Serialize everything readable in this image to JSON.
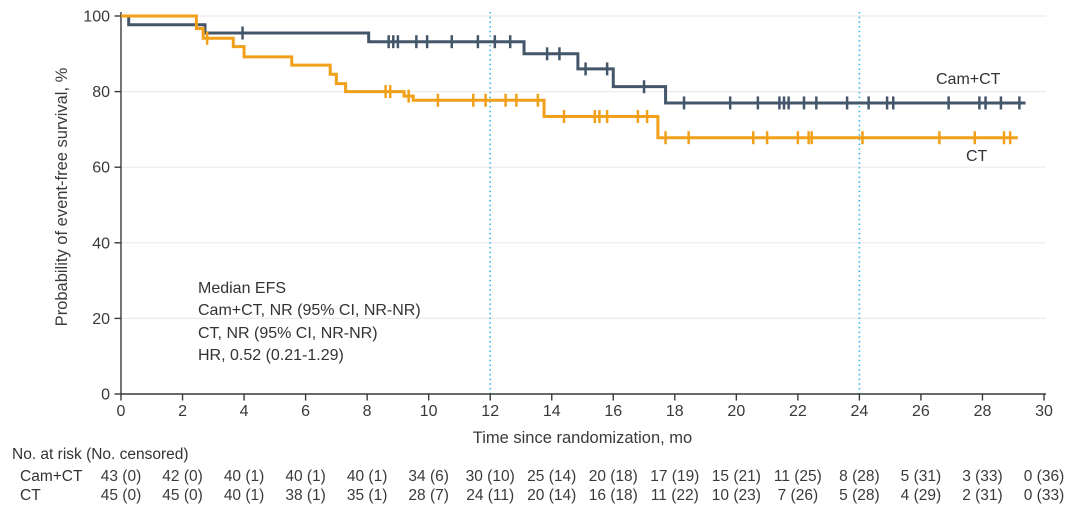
{
  "chart_data": {
    "type": "line",
    "subtype": "kaplan-meier-step",
    "title": "",
    "xlabel": "Time since randomization, mo",
    "ylabel": "Probability of event-free survival, %",
    "xlim": [
      0,
      30
    ],
    "ylim": [
      0,
      100
    ],
    "xticks": [
      0,
      2,
      4,
      6,
      8,
      10,
      12,
      14,
      16,
      18,
      20,
      22,
      24,
      26,
      28,
      30
    ],
    "yticks": [
      0,
      20,
      40,
      60,
      80,
      100
    ],
    "grid": "horizontal",
    "reference_lines_x": [
      12,
      24
    ],
    "legend_position": "curve-end-labels",
    "colors": {
      "camct": "#44576A",
      "ct": "#F0A019",
      "refline": "#35B6E9",
      "grid": "#ECECEC",
      "axis": "#3A3A3A",
      "text": "#333333"
    },
    "annotation": {
      "lines": [
        "Median EFS",
        "Cam+CT, NR (95% CI, NR-NR)",
        "CT, NR (95% CI, NR-NR)",
        "HR, 0.52 (0.21-1.29)"
      ]
    },
    "series": [
      {
        "name": "Cam+CT",
        "color_key": "camct",
        "steps": [
          [
            0,
            100
          ],
          [
            0.25,
            97.7
          ],
          [
            2.73,
            95.5
          ],
          [
            8.05,
            93.2
          ],
          [
            13.1,
            90.0
          ],
          [
            14.85,
            86.0
          ],
          [
            16.0,
            81.3
          ],
          [
            17.7,
            77.0
          ],
          [
            29.4,
            77.0
          ]
        ],
        "censors": [
          [
            3.95,
            95.5
          ],
          [
            8.7,
            93.2
          ],
          [
            8.85,
            93.2
          ],
          [
            9.0,
            93.2
          ],
          [
            9.6,
            93.2
          ],
          [
            9.95,
            93.2
          ],
          [
            10.75,
            93.2
          ],
          [
            11.6,
            93.2
          ],
          [
            12.15,
            93.2
          ],
          [
            12.65,
            93.2
          ],
          [
            13.85,
            90.0
          ],
          [
            14.25,
            90.0
          ],
          [
            15.1,
            86.0
          ],
          [
            15.8,
            86.0
          ],
          [
            17.0,
            81.3
          ],
          [
            18.3,
            77.0
          ],
          [
            19.8,
            77.0
          ],
          [
            20.7,
            77.0
          ],
          [
            21.4,
            77.0
          ],
          [
            21.55,
            77.0
          ],
          [
            21.7,
            77.0
          ],
          [
            22.2,
            77.0
          ],
          [
            22.6,
            77.0
          ],
          [
            23.6,
            77.0
          ],
          [
            24.3,
            77.0
          ],
          [
            24.9,
            77.0
          ],
          [
            25.1,
            77.0
          ],
          [
            26.9,
            77.0
          ],
          [
            27.9,
            77.0
          ],
          [
            28.1,
            77.0
          ],
          [
            28.6,
            77.0
          ],
          [
            29.2,
            77.0
          ]
        ]
      },
      {
        "name": "CT",
        "color_key": "ct",
        "steps": [
          [
            0,
            100
          ],
          [
            2.45,
            96.7
          ],
          [
            2.67,
            94.1
          ],
          [
            3.65,
            91.9
          ],
          [
            4.0,
            89.2
          ],
          [
            5.55,
            87.0
          ],
          [
            6.8,
            84.6
          ],
          [
            7.0,
            82.1
          ],
          [
            7.3,
            80.0
          ],
          [
            9.2,
            78.8
          ],
          [
            9.5,
            77.7
          ],
          [
            13.75,
            73.4
          ],
          [
            17.45,
            67.8
          ],
          [
            29.15,
            67.8
          ]
        ],
        "censors": [
          [
            2.8,
            94.1
          ],
          [
            8.6,
            80.0
          ],
          [
            8.75,
            80.0
          ],
          [
            9.35,
            78.8
          ],
          [
            10.3,
            77.7
          ],
          [
            11.45,
            77.7
          ],
          [
            11.85,
            77.7
          ],
          [
            12.5,
            77.7
          ],
          [
            12.85,
            77.7
          ],
          [
            13.55,
            77.7
          ],
          [
            14.4,
            73.4
          ],
          [
            15.4,
            73.4
          ],
          [
            15.55,
            73.4
          ],
          [
            15.8,
            73.4
          ],
          [
            16.8,
            73.4
          ],
          [
            17.1,
            73.4
          ],
          [
            17.7,
            67.8
          ],
          [
            18.45,
            67.8
          ],
          [
            20.55,
            67.8
          ],
          [
            21.0,
            67.8
          ],
          [
            22.0,
            67.8
          ],
          [
            22.35,
            67.8
          ],
          [
            22.45,
            67.8
          ],
          [
            24.1,
            67.8
          ],
          [
            26.6,
            67.8
          ],
          [
            27.75,
            67.8
          ],
          [
            28.7,
            67.8
          ],
          [
            28.9,
            67.8
          ]
        ]
      }
    ],
    "risk_table": {
      "header": "No. at risk (No. censored)",
      "months": [
        0,
        2,
        4,
        6,
        8,
        10,
        12,
        14,
        16,
        18,
        20,
        22,
        24,
        26,
        28,
        30
      ],
      "rows": [
        {
          "label": "Cam+CT",
          "values": [
            "43 (0)",
            "42 (0)",
            "40 (1)",
            "40 (1)",
            "40 (1)",
            "34 (6)",
            "30 (10)",
            "25 (14)",
            "20 (18)",
            "17 (19)",
            "15 (21)",
            "11 (25)",
            "8 (28)",
            "5 (31)",
            "3 (33)",
            "0 (36)"
          ]
        },
        {
          "label": "CT",
          "values": [
            "45 (0)",
            "45 (0)",
            "40 (1)",
            "38 (1)",
            "35 (1)",
            "28 (7)",
            "24 (11)",
            "20 (14)",
            "16 (18)",
            "11 (22)",
            "10 (23)",
            "7 (26)",
            "5 (28)",
            "4 (29)",
            "2 (31)",
            "0 (33)"
          ]
        }
      ]
    }
  }
}
